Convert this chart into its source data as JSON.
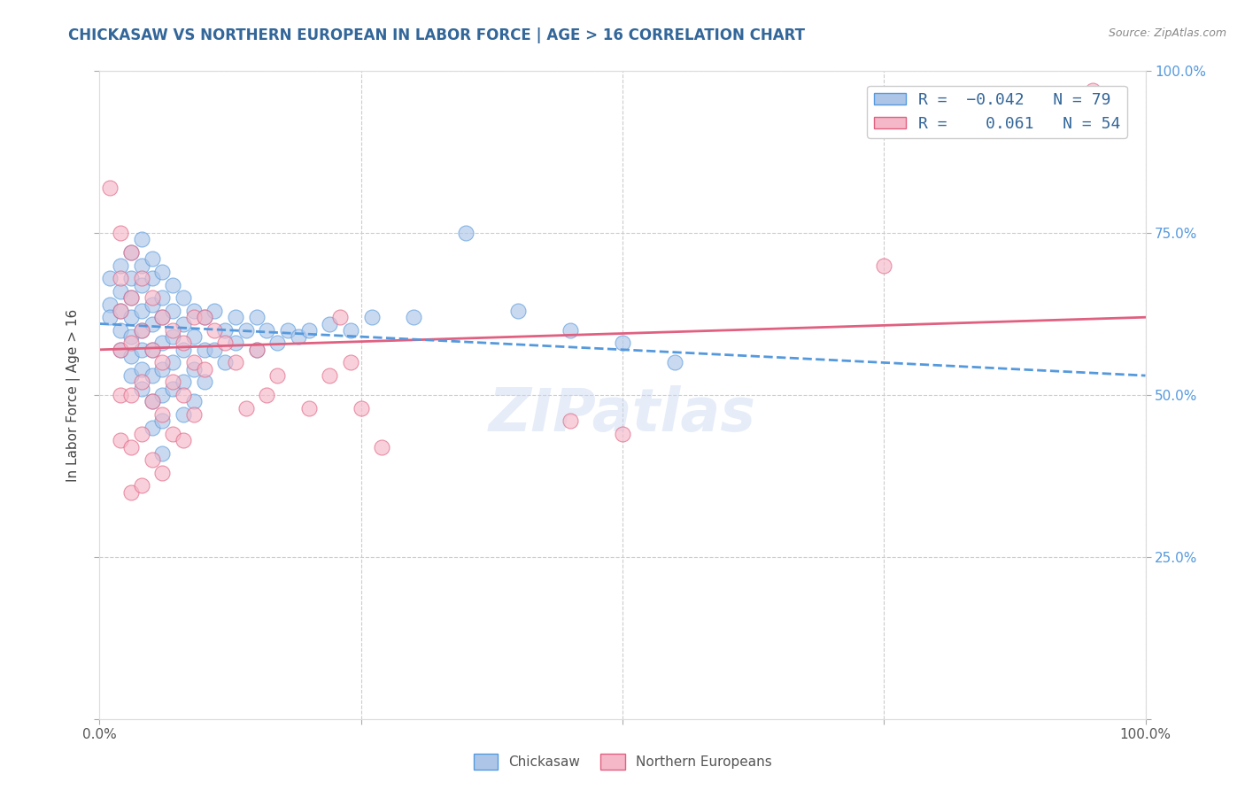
{
  "title": "CHICKASAW VS NORTHERN EUROPEAN IN LABOR FORCE | AGE > 16 CORRELATION CHART",
  "source": "Source: ZipAtlas.com",
  "ylabel": "In Labor Force | Age > 16",
  "xlim": [
    0.0,
    1.0
  ],
  "ylim": [
    0.0,
    1.0
  ],
  "xticks": [
    0.0,
    0.25,
    0.5,
    0.75,
    1.0
  ],
  "xticklabels": [
    "0.0%",
    "",
    "",
    "",
    "100.0%"
  ],
  "yticks": [
    0.0,
    0.25,
    0.5,
    0.75,
    1.0
  ],
  "right_yticklabels": [
    "",
    "25.0%",
    "50.0%",
    "75.0%",
    "100.0%"
  ],
  "chickasaw_color": "#adc6e8",
  "northern_color": "#f5b8c8",
  "watermark": "ZIPatlas",
  "background_color": "#ffffff",
  "grid_color": "#cccccc",
  "chickasaw_R": -0.042,
  "chickasaw_N": 79,
  "northern_R": 0.061,
  "northern_N": 54,
  "title_fontsize": 12,
  "axis_label_fontsize": 11,
  "tick_fontsize": 11,
  "legend_fontsize": 13,
  "watermark_fontsize": 48,
  "watermark_color": "#c8d8f0",
  "watermark_alpha": 0.45,
  "chickasaw_line_color": "#5599dd",
  "northern_line_color": "#e06080",
  "chickasaw_scatter": [
    [
      0.01,
      0.64
    ],
    [
      0.01,
      0.68
    ],
    [
      0.01,
      0.62
    ],
    [
      0.02,
      0.7
    ],
    [
      0.02,
      0.66
    ],
    [
      0.02,
      0.63
    ],
    [
      0.02,
      0.6
    ],
    [
      0.02,
      0.57
    ],
    [
      0.03,
      0.72
    ],
    [
      0.03,
      0.68
    ],
    [
      0.03,
      0.65
    ],
    [
      0.03,
      0.62
    ],
    [
      0.03,
      0.59
    ],
    [
      0.03,
      0.56
    ],
    [
      0.03,
      0.53
    ],
    [
      0.04,
      0.74
    ],
    [
      0.04,
      0.7
    ],
    [
      0.04,
      0.67
    ],
    [
      0.04,
      0.63
    ],
    [
      0.04,
      0.6
    ],
    [
      0.04,
      0.57
    ],
    [
      0.04,
      0.54
    ],
    [
      0.04,
      0.51
    ],
    [
      0.05,
      0.71
    ],
    [
      0.05,
      0.68
    ],
    [
      0.05,
      0.64
    ],
    [
      0.05,
      0.61
    ],
    [
      0.05,
      0.57
    ],
    [
      0.05,
      0.53
    ],
    [
      0.05,
      0.49
    ],
    [
      0.05,
      0.45
    ],
    [
      0.06,
      0.69
    ],
    [
      0.06,
      0.65
    ],
    [
      0.06,
      0.62
    ],
    [
      0.06,
      0.58
    ],
    [
      0.06,
      0.54
    ],
    [
      0.06,
      0.5
    ],
    [
      0.06,
      0.46
    ],
    [
      0.06,
      0.41
    ],
    [
      0.07,
      0.67
    ],
    [
      0.07,
      0.63
    ],
    [
      0.07,
      0.59
    ],
    [
      0.07,
      0.55
    ],
    [
      0.07,
      0.51
    ],
    [
      0.08,
      0.65
    ],
    [
      0.08,
      0.61
    ],
    [
      0.08,
      0.57
    ],
    [
      0.08,
      0.52
    ],
    [
      0.08,
      0.47
    ],
    [
      0.09,
      0.63
    ],
    [
      0.09,
      0.59
    ],
    [
      0.09,
      0.54
    ],
    [
      0.09,
      0.49
    ],
    [
      0.1,
      0.62
    ],
    [
      0.1,
      0.57
    ],
    [
      0.1,
      0.52
    ],
    [
      0.11,
      0.63
    ],
    [
      0.11,
      0.57
    ],
    [
      0.12,
      0.6
    ],
    [
      0.12,
      0.55
    ],
    [
      0.13,
      0.62
    ],
    [
      0.13,
      0.58
    ],
    [
      0.14,
      0.6
    ],
    [
      0.15,
      0.62
    ],
    [
      0.15,
      0.57
    ],
    [
      0.16,
      0.6
    ],
    [
      0.17,
      0.58
    ],
    [
      0.18,
      0.6
    ],
    [
      0.19,
      0.59
    ],
    [
      0.2,
      0.6
    ],
    [
      0.22,
      0.61
    ],
    [
      0.24,
      0.6
    ],
    [
      0.26,
      0.62
    ],
    [
      0.3,
      0.62
    ],
    [
      0.35,
      0.75
    ],
    [
      0.4,
      0.63
    ],
    [
      0.45,
      0.6
    ],
    [
      0.5,
      0.58
    ],
    [
      0.55,
      0.55
    ]
  ],
  "northern_scatter": [
    [
      0.01,
      0.82
    ],
    [
      0.02,
      0.75
    ],
    [
      0.02,
      0.68
    ],
    [
      0.02,
      0.63
    ],
    [
      0.02,
      0.57
    ],
    [
      0.02,
      0.5
    ],
    [
      0.02,
      0.43
    ],
    [
      0.03,
      0.72
    ],
    [
      0.03,
      0.65
    ],
    [
      0.03,
      0.58
    ],
    [
      0.03,
      0.5
    ],
    [
      0.03,
      0.42
    ],
    [
      0.03,
      0.35
    ],
    [
      0.04,
      0.68
    ],
    [
      0.04,
      0.6
    ],
    [
      0.04,
      0.52
    ],
    [
      0.04,
      0.44
    ],
    [
      0.04,
      0.36
    ],
    [
      0.05,
      0.65
    ],
    [
      0.05,
      0.57
    ],
    [
      0.05,
      0.49
    ],
    [
      0.05,
      0.4
    ],
    [
      0.06,
      0.62
    ],
    [
      0.06,
      0.55
    ],
    [
      0.06,
      0.47
    ],
    [
      0.06,
      0.38
    ],
    [
      0.07,
      0.6
    ],
    [
      0.07,
      0.52
    ],
    [
      0.07,
      0.44
    ],
    [
      0.08,
      0.58
    ],
    [
      0.08,
      0.5
    ],
    [
      0.08,
      0.43
    ],
    [
      0.09,
      0.62
    ],
    [
      0.09,
      0.55
    ],
    [
      0.09,
      0.47
    ],
    [
      0.1,
      0.62
    ],
    [
      0.1,
      0.54
    ],
    [
      0.11,
      0.6
    ],
    [
      0.12,
      0.58
    ],
    [
      0.13,
      0.55
    ],
    [
      0.14,
      0.48
    ],
    [
      0.15,
      0.57
    ],
    [
      0.16,
      0.5
    ],
    [
      0.17,
      0.53
    ],
    [
      0.2,
      0.48
    ],
    [
      0.22,
      0.53
    ],
    [
      0.23,
      0.62
    ],
    [
      0.24,
      0.55
    ],
    [
      0.25,
      0.48
    ],
    [
      0.27,
      0.42
    ],
    [
      0.45,
      0.46
    ],
    [
      0.5,
      0.44
    ],
    [
      0.75,
      0.7
    ],
    [
      0.95,
      0.97
    ]
  ]
}
